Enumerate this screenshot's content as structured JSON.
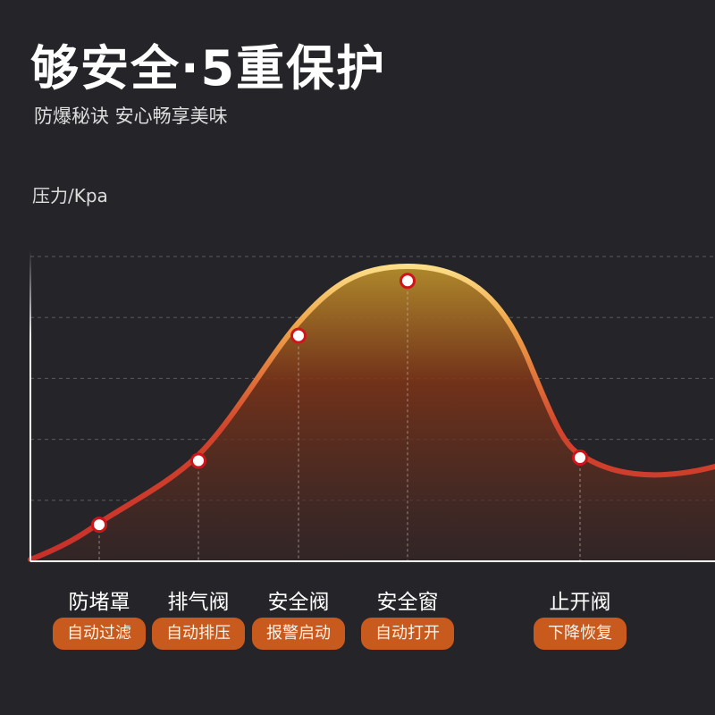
{
  "header": {
    "title": "够安全·5重保护",
    "subtitle": "防爆秘诀 安心畅享美味"
  },
  "chart_data": {
    "type": "area",
    "ylabel": "压力/Kpa",
    "grid": true,
    "categories": [
      "防堵罩",
      "排气阀",
      "安全阀",
      "安全窗",
      "止开阀"
    ],
    "badges": [
      "自动过滤",
      "自动排压",
      "报警启动",
      "自动打开",
      "下降恢复"
    ],
    "values": [
      0.6,
      1.65,
      3.7,
      4.6,
      1.7
    ],
    "ylim": [
      0,
      5
    ],
    "colors": {
      "line_low": "#c8302a",
      "line_high": "#f7c65c",
      "marker": "#d0141b",
      "badge": "#c85a1e"
    }
  }
}
